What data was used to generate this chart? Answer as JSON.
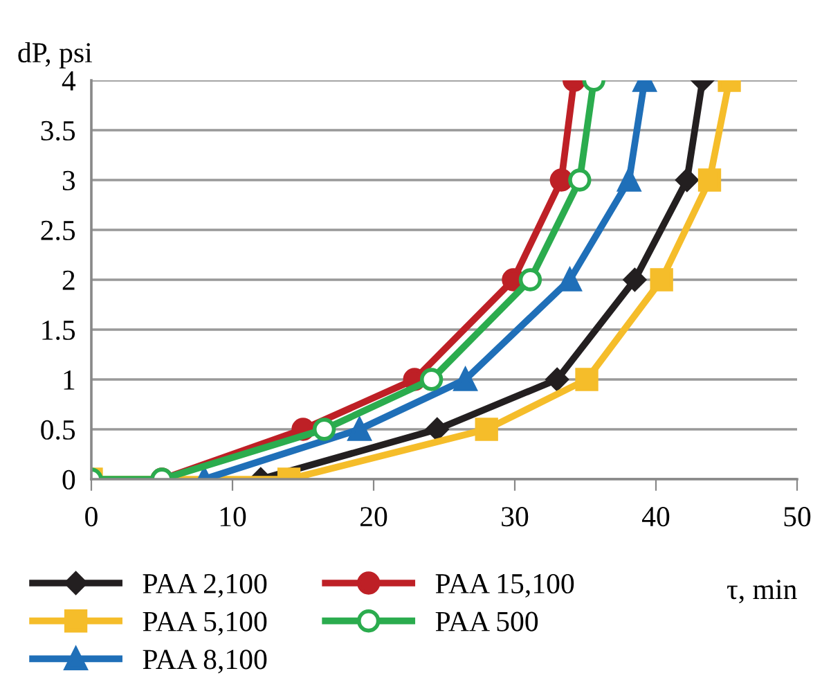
{
  "chart_data": {
    "type": "line",
    "xlabel": "τ, min",
    "ylabel": "dP, psi",
    "xlim": [
      0,
      50
    ],
    "xticks": [
      0,
      10,
      20,
      30,
      40,
      50
    ],
    "ylim": [
      0,
      4
    ],
    "yticks": [
      0,
      0.5,
      1,
      1.5,
      2,
      2.5,
      3,
      3.5,
      4
    ],
    "grid": "y",
    "legend": "bottom",
    "line_style": "solid",
    "series": [
      {
        "name": "PAA 2,100",
        "color": "#231f20",
        "marker": "diamond",
        "x": [
          12,
          24.5,
          33,
          38.5,
          42.2,
          43.3
        ],
        "values": [
          0,
          0.5,
          1,
          2,
          3,
          4
        ]
      },
      {
        "name": "PAA 5,100",
        "color": "#f5bd2a",
        "marker": "square",
        "x": [
          0,
          14,
          28,
          35.1,
          40.4,
          43.8,
          45.2
        ],
        "values": [
          0,
          0,
          0.5,
          1,
          2,
          3,
          4
        ]
      },
      {
        "name": "PAA 8,100",
        "color": "#1f6fb8",
        "marker": "triangle",
        "x": [
          8,
          19,
          26.5,
          33.9,
          38.1,
          39.2
        ],
        "values": [
          0,
          0.5,
          1,
          2,
          3,
          4
        ]
      },
      {
        "name": "PAA 15,100",
        "color": "#be2026",
        "marker": "circle",
        "x": [
          5,
          15,
          22.9,
          29.9,
          33.3,
          34.2
        ],
        "values": [
          0,
          0.5,
          1,
          2,
          3,
          4
        ]
      },
      {
        "name": "PAA 500",
        "color": "#2bac4e",
        "marker": "open circle",
        "x": [
          0,
          5,
          16.5,
          24.1,
          31.1,
          34.6,
          35.6
        ],
        "values": [
          0,
          0,
          0.5,
          1,
          2,
          3,
          4
        ]
      }
    ]
  }
}
